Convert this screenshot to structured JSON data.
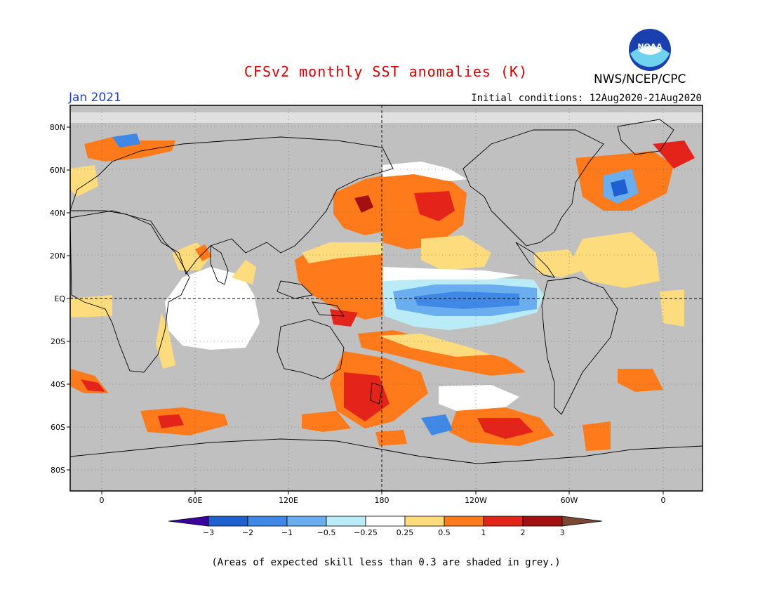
{
  "title": "CFSv2 monthly SST anomalies (K)",
  "valid_month": "Jan 2021",
  "initial_conditions": "Initial conditions: 12Aug2020-21Aug2020",
  "agency": "NWS/NCEP/CPC",
  "logo_text": "NOAA",
  "footnote": "(Areas of expected skill less than 0.3 are shaded in grey.)",
  "lat_labels": [
    "80N",
    "60N",
    "40N",
    "20N",
    "EQ",
    "20S",
    "40S",
    "60S",
    "80S"
  ],
  "lon_labels": [
    "0",
    "60E",
    "120E",
    "180",
    "120W",
    "60W",
    "0"
  ],
  "colorbar": {
    "labels": [
      "−3",
      "−2",
      "−1",
      "−0.5",
      "−0.25",
      "0.25",
      "0.5",
      "1",
      "2",
      "3"
    ],
    "colors": [
      "#3b009e",
      "#1f5fd0",
      "#3f88e6",
      "#6aaef0",
      "#b9ecf6",
      "#ffffff",
      "#fddc7e",
      "#ff7a1a",
      "#e4241a",
      "#a40f12",
      "#7a4832"
    ]
  },
  "colors": {
    "skill_grey": "#c0c0c0",
    "title_red": "#d40000",
    "month_blue": "#1f3fd6"
  }
}
